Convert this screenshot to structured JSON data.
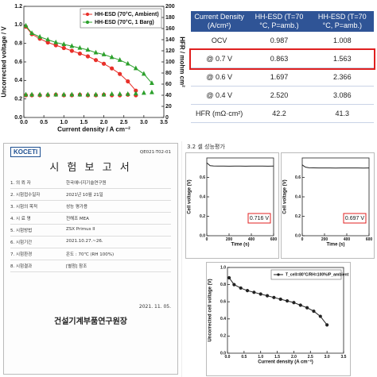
{
  "chart_data": [
    {
      "type": "line",
      "xlabel": "Current density / A cm⁻²",
      "ylabel": "Uncorrected voltage / V",
      "y2label": "HFR / mohm cm²",
      "xlim": [
        0,
        3.5
      ],
      "ylim": [
        0,
        1.2
      ],
      "y2lim": [
        0,
        200
      ],
      "xticks": [
        {
          "value": 0,
          "label": "0.0"
        },
        {
          "value": 0.5,
          "label": "0.5"
        },
        {
          "value": 1,
          "label": "1.0"
        },
        {
          "value": 1.5,
          "label": "1.5"
        },
        {
          "value": 2,
          "label": "2.0"
        },
        {
          "value": 2.5,
          "label": "2.5"
        },
        {
          "value": 3,
          "label": "3.0"
        },
        {
          "value": 3.5,
          "label": "3.5"
        }
      ],
      "yticks": [
        {
          "value": 0,
          "label": "0.0"
        },
        0.2,
        0.4,
        0.6,
        0.8,
        {
          "value": 1,
          "label": "1.0"
        },
        1.2
      ],
      "y2ticks": [
        0,
        20,
        40,
        60,
        80,
        100,
        120,
        140,
        160,
        180,
        200
      ],
      "legend": "upper right",
      "series": [
        {
          "name": "HH-ESD (70°C, Ambient)",
          "color": "#e8302a",
          "marker": "circle",
          "line": true,
          "x": [
            0.05,
            0.2,
            0.4,
            0.6,
            0.8,
            1.0,
            1.2,
            1.4,
            1.6,
            1.8,
            2.0,
            2.2,
            2.4,
            2.6,
            2.8
          ],
          "values": [
            0.98,
            0.9,
            0.85,
            0.81,
            0.78,
            0.75,
            0.72,
            0.69,
            0.66,
            0.62,
            0.58,
            0.53,
            0.47,
            0.39,
            0.29
          ]
        },
        {
          "name": "HH-ESD (70°C, 1 Barg)",
          "color": "#2ca02c",
          "marker": "triangle",
          "line": true,
          "x": [
            0.05,
            0.2,
            0.4,
            0.6,
            0.8,
            1.0,
            1.2,
            1.4,
            1.6,
            1.8,
            2.0,
            2.2,
            2.4,
            2.6,
            2.8,
            3.0,
            3.2
          ],
          "values": [
            0.99,
            0.91,
            0.87,
            0.84,
            0.81,
            0.79,
            0.77,
            0.75,
            0.73,
            0.7,
            0.68,
            0.65,
            0.62,
            0.58,
            0.53,
            0.47,
            0.37
          ]
        },
        {
          "axis": "y2",
          "color": "#e8302a",
          "marker": "circle",
          "line": false,
          "x": [
            0.05,
            0.2,
            0.4,
            0.6,
            0.8,
            1.0,
            1.2,
            1.4,
            1.6,
            1.8,
            2.0,
            2.2,
            2.4,
            2.6,
            2.8
          ],
          "values": [
            40,
            40,
            40,
            40,
            41,
            40,
            40,
            41,
            40,
            40,
            41,
            40,
            40,
            41,
            40
          ]
        },
        {
          "axis": "y2",
          "color": "#2ca02c",
          "marker": "triangle",
          "line": false,
          "x": [
            0.05,
            0.2,
            0.4,
            0.6,
            0.8,
            1.0,
            1.2,
            1.4,
            1.6,
            1.8,
            2.0,
            2.2,
            2.4,
            2.6,
            2.8,
            3.0,
            3.2
          ],
          "values": [
            41,
            41,
            41,
            41,
            41,
            41,
            41,
            41,
            41,
            41,
            41,
            42,
            42,
            42,
            43,
            44,
            45
          ]
        }
      ]
    },
    {
      "type": "line",
      "xlabel": "Time (s)",
      "ylabel": "Cell voltage (V)",
      "xlim": [
        0,
        600
      ],
      "ylim": [
        0,
        0.8
      ],
      "xticks": [
        0,
        200,
        400,
        600
      ],
      "yticks": [
        {
          "value": 0,
          "label": "0.0"
        },
        0.2,
        0.4,
        0.6
      ],
      "annotations": [
        "0.716 V"
      ],
      "series": [
        {
          "color": "#222222",
          "line": true,
          "x": [
            0,
            10,
            30,
            60,
            100,
            150,
            200,
            250,
            300,
            350,
            400,
            450,
            500,
            550,
            600
          ],
          "values": [
            0.75,
            0.74,
            0.72,
            0.717,
            0.716,
            0.716,
            0.715,
            0.716,
            0.716,
            0.715,
            0.716,
            0.716,
            0.716,
            0.715,
            0.716
          ]
        }
      ]
    },
    {
      "type": "line",
      "xlabel": "Time (s)",
      "ylabel": "Cell voltage (V)",
      "xlim": [
        0,
        600
      ],
      "ylim": [
        0,
        0.8
      ],
      "xticks": [
        0,
        200,
        400,
        600
      ],
      "yticks": [
        {
          "value": 0,
          "label": "0.0"
        },
        0.2,
        0.4,
        0.6
      ],
      "annotations": [
        "0.697 V"
      ],
      "series": [
        {
          "color": "#222222",
          "line": true,
          "x": [
            0,
            10,
            30,
            60,
            100,
            150,
            200,
            250,
            300,
            350,
            400,
            450,
            500,
            550,
            600
          ],
          "values": [
            0.73,
            0.72,
            0.705,
            0.699,
            0.698,
            0.697,
            0.697,
            0.697,
            0.696,
            0.697,
            0.697,
            0.697,
            0.697,
            0.696,
            0.697
          ]
        }
      ]
    },
    {
      "type": "line",
      "xlabel": "Current density (A cm⁻²)",
      "ylabel": "Uncorrected cell voltage (V)",
      "xlim": [
        0,
        3.5
      ],
      "ylim": [
        0,
        1.0
      ],
      "xticks": [
        {
          "value": 0,
          "label": "0.0"
        },
        {
          "value": 0.5,
          "label": "0.5"
        },
        {
          "value": 1,
          "label": "1.0"
        },
        {
          "value": 1.5,
          "label": "1.5"
        },
        {
          "value": 2,
          "label": "2.0"
        },
        {
          "value": 2.5,
          "label": "2.5"
        },
        {
          "value": 3,
          "label": "3.0"
        },
        {
          "value": 3.5,
          "label": "3.5"
        }
      ],
      "yticks": [
        {
          "value": 0,
          "label": "0.0"
        },
        0.2,
        0.4,
        0.6,
        0.8,
        {
          "value": 1,
          "label": "1.0"
        }
      ],
      "legend": "upper right",
      "series": [
        {
          "name": "T_cell=80°C/RH=100%/P_ambient",
          "color": "#222222",
          "marker": "circle",
          "line": true,
          "x": [
            0.05,
            0.2,
            0.4,
            0.6,
            0.8,
            1.0,
            1.2,
            1.4,
            1.6,
            1.8,
            2.0,
            2.2,
            2.4,
            2.6,
            2.8,
            3.0
          ],
          "values": [
            0.88,
            0.8,
            0.76,
            0.73,
            0.71,
            0.69,
            0.67,
            0.65,
            0.63,
            0.61,
            0.59,
            0.56,
            0.53,
            0.49,
            0.43,
            0.33
          ]
        }
      ]
    }
  ],
  "table": {
    "header": [
      "Current Density (A/cm²)",
      "HH-ESD (T=70 °C, P=amb.)",
      "HH-ESD (T=70 °C, P=amb.)"
    ],
    "rows": [
      [
        "OCV",
        "0.987",
        "1.008"
      ],
      [
        "@ 0.7 V",
        "0.863",
        "1.563"
      ],
      [
        "@ 0.6 V",
        "1.697",
        "2.366"
      ],
      [
        "@ 0.4 V",
        "2.520",
        "3.086"
      ],
      [
        "HFR (mΩ·cm²)",
        "42.2",
        "41.3"
      ]
    ],
    "highlighted_row": 1
  },
  "report": {
    "logo": "KOCETI",
    "number": "QE021-T02-01",
    "title": "시 험 보 고 서",
    "fields": [
      {
        "label": "1. 의 뢰 자",
        "value": "한국에너지기술연구원"
      },
      {
        "label": "2. 시험접수일자",
        "value": "2021년 10월 21일"
      },
      {
        "label": "3. 시험의 목적",
        "value": "성능 평가용"
      },
      {
        "label": "4. 시 료 명",
        "value": "전해조 MEA"
      },
      {
        "label": "5. 시험방법",
        "value": "ZSX Primus II"
      },
      {
        "label": "6. 시험기간",
        "value": "2021.10.27.~26."
      },
      {
        "label": "7. 시험환경",
        "value": "온도 : 70℃ (RH 100%)"
      },
      {
        "label": "8. 시험결과",
        "value": "[별첨] 참조"
      }
    ],
    "date": "2021. 11. 05.",
    "issuer": "건설기계부품연구원장"
  },
  "section_title": "3.2 셀 성능평가"
}
